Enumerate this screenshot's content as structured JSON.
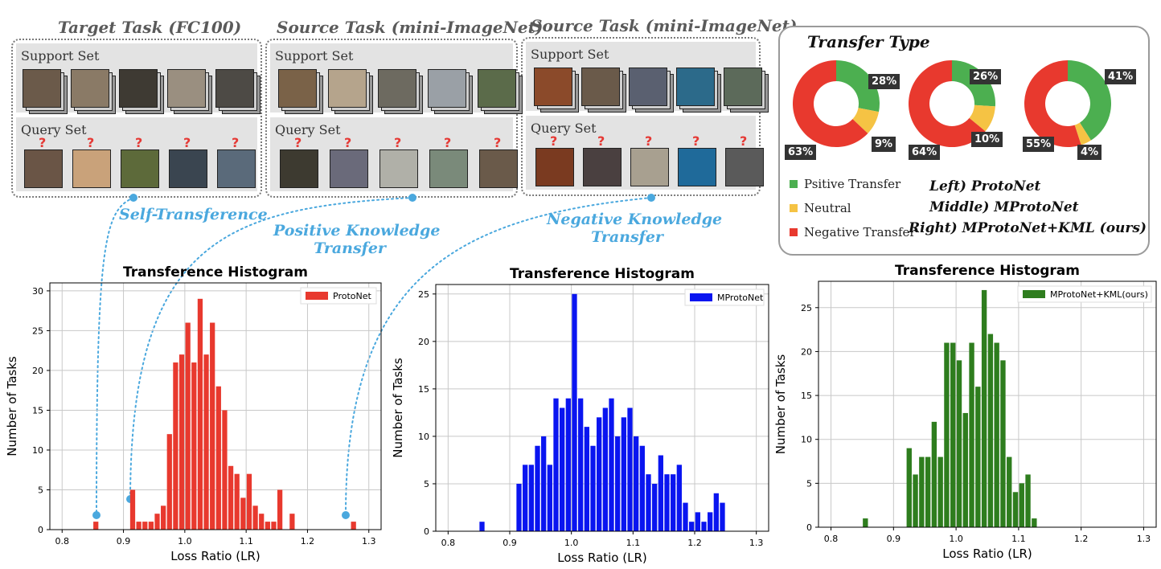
{
  "tasks": [
    {
      "title": "Target Task (FC100)",
      "support_label": "Support Set",
      "query_label": "Query Set"
    },
    {
      "title": "Source Task (mini-ImageNet)",
      "support_label": "Support Set",
      "query_label": "Query Set"
    },
    {
      "title": "Source Task (mini-ImageNet)",
      "support_label": "Support Set",
      "query_label": "Query Set"
    }
  ],
  "query_mark": "?",
  "annotations": {
    "self": "Self-Transference",
    "positive_1": "Positive Knowledge",
    "positive_2": "Transfer",
    "negative_1": "Negative Knowledge",
    "negative_2": "Transfer"
  },
  "transfer_type": {
    "title": "Transfer Type",
    "legend": [
      "Psitive Transfer",
      "Neutral",
      "Negative Transfer"
    ],
    "models": [
      "Left) ProtoNet",
      "Middle) MProtoNet",
      "Right) MProtoNet+KML (ours)"
    ]
  },
  "colors": {
    "positive": "#4caf50",
    "neutral": "#f5c344",
    "negative": "#e8392e",
    "protonet": "#e8392e",
    "mprotonet": "#0a15f0",
    "kml": "#2e7d1e",
    "annot": "#4aa8de"
  },
  "chart_data": [
    {
      "type": "pie",
      "style": "donut",
      "labels": [
        "Psitive Transfer",
        "Neutral",
        "Negative Transfer"
      ],
      "values": [
        28,
        9,
        63
      ],
      "value_labels": [
        "28%",
        "9%",
        "63%"
      ]
    },
    {
      "type": "pie",
      "style": "donut",
      "labels": [
        "Psitive Transfer",
        "Neutral",
        "Negative Transfer"
      ],
      "values": [
        26,
        10,
        64
      ],
      "value_labels": [
        "26%",
        "10%",
        "64%"
      ]
    },
    {
      "type": "pie",
      "style": "donut",
      "labels": [
        "Psitive Transfer",
        "Neutral",
        "Negative Transfer"
      ],
      "values": [
        41,
        4,
        55
      ],
      "value_labels": [
        "41%",
        "4%",
        "55%"
      ]
    },
    {
      "type": "bar",
      "title": "Transference Histogram",
      "xlabel": "Loss Ratio (LR)",
      "ylabel": "Number of Tasks",
      "xlim": [
        0.78,
        1.32
      ],
      "ylim": [
        0,
        31
      ],
      "xticks": [
        "0.8",
        "0.9",
        "1.0",
        "1.1",
        "1.2",
        "1.3"
      ],
      "yticks": [
        "0",
        "5",
        "10",
        "15",
        "20",
        "25",
        "30"
      ],
      "grid": true,
      "legend_position": "top-right",
      "series": [
        {
          "name": "ProtoNet",
          "color": "#e8392e"
        }
      ],
      "x": [
        0.855,
        0.915,
        0.925,
        0.935,
        0.945,
        0.955,
        0.965,
        0.975,
        0.985,
        0.995,
        1.005,
        1.015,
        1.025,
        1.035,
        1.045,
        1.055,
        1.065,
        1.075,
        1.085,
        1.095,
        1.105,
        1.115,
        1.125,
        1.135,
        1.145,
        1.155,
        1.175,
        1.275
      ],
      "values": [
        1,
        5,
        1,
        1,
        1,
        2,
        3,
        12,
        21,
        22,
        26,
        21,
        29,
        22,
        26,
        18,
        15,
        8,
        7,
        4,
        7,
        3,
        2,
        1,
        1,
        5,
        2,
        1
      ]
    },
    {
      "type": "bar",
      "title": "Transference Histogram",
      "xlabel": "Loss Ratio (LR)",
      "ylabel": "Number of Tasks",
      "xlim": [
        0.78,
        1.32
      ],
      "ylim": [
        0,
        26
      ],
      "xticks": [
        "0.8",
        "0.9",
        "1.0",
        "1.1",
        "1.2",
        "1.3"
      ],
      "yticks": [
        "0",
        "5",
        "10",
        "15",
        "20",
        "25"
      ],
      "grid": true,
      "legend_position": "top-right",
      "series": [
        {
          "name": "MProtoNet",
          "color": "#0a15f0"
        }
      ],
      "x": [
        0.855,
        0.915,
        0.925,
        0.935,
        0.945,
        0.955,
        0.965,
        0.975,
        0.985,
        0.995,
        1.005,
        1.015,
        1.025,
        1.035,
        1.045,
        1.055,
        1.065,
        1.075,
        1.085,
        1.095,
        1.105,
        1.115,
        1.125,
        1.135,
        1.145,
        1.155,
        1.165,
        1.175,
        1.185,
        1.195,
        1.205,
        1.215,
        1.225,
        1.235,
        1.245
      ],
      "values": [
        1,
        5,
        7,
        7,
        9,
        10,
        7,
        14,
        13,
        14,
        25,
        14,
        11,
        9,
        12,
        13,
        14,
        10,
        12,
        13,
        10,
        9,
        6,
        5,
        8,
        6,
        6,
        7,
        3,
        1,
        2,
        1,
        2,
        4,
        3
      ]
    },
    {
      "type": "bar",
      "title": "Transference Histogram",
      "xlabel": "Loss Ratio (LR)",
      "ylabel": "Number of Tasks",
      "xlim": [
        0.78,
        1.32
      ],
      "ylim": [
        0,
        28
      ],
      "xticks": [
        "0.8",
        "0.9",
        "1.0",
        "1.1",
        "1.2",
        "1.3"
      ],
      "yticks": [
        "0",
        "5",
        "10",
        "15",
        "20",
        "25"
      ],
      "grid": true,
      "legend_position": "top-right",
      "series": [
        {
          "name": "MProtoNet+KML(ours)",
          "color": "#2e7d1e"
        }
      ],
      "x": [
        0.855,
        0.925,
        0.935,
        0.945,
        0.955,
        0.965,
        0.975,
        0.985,
        0.995,
        1.005,
        1.015,
        1.025,
        1.035,
        1.045,
        1.055,
        1.065,
        1.075,
        1.085,
        1.095,
        1.105,
        1.115,
        1.125
      ],
      "values": [
        1,
        9,
        6,
        8,
        8,
        12,
        8,
        21,
        21,
        19,
        13,
        21,
        16,
        27,
        22,
        21,
        19,
        8,
        4,
        5,
        6,
        1
      ]
    }
  ]
}
